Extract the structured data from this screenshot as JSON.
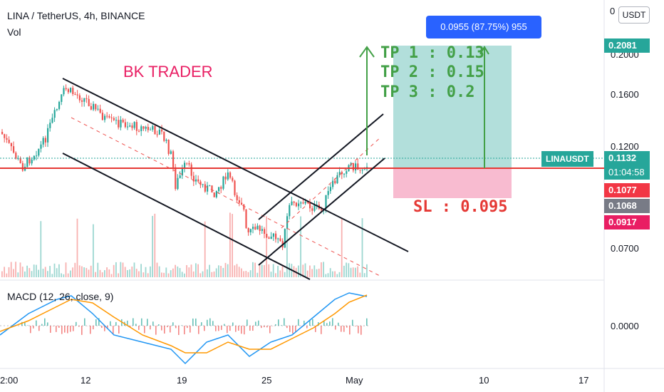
{
  "header": {
    "symbol_line": "LINA / TetherUS, 4h, BINANCE",
    "volume_label": "Vol",
    "macd_label": "MACD (12, 26, close, 9)"
  },
  "currency_button": "USDT",
  "brand_text": "BK TRADER",
  "measure_label": "0.0955 (87.75%) 955",
  "annotations": {
    "tp1": "TP 1 : 0.13",
    "tp2": "TP 2 : 0.15",
    "tp3": "TP 3 : 0.2",
    "sl": "SL : 0.095"
  },
  "price_tags": {
    "target": "0.2081",
    "current": "0.1132",
    "countdown": "01:04:58",
    "symbol": "LINAUSDT",
    "red": "0.1077",
    "grey": "0.1068",
    "stop": "0.0917"
  },
  "colors": {
    "up": "#26a69a",
    "down": "#ef5350",
    "support_line": "#e53935",
    "profit_zone": "#b2dfdb",
    "loss_zone": "#f8bbd0",
    "annotation_green": "#43a047",
    "annotation_red": "#e53935",
    "macd_line": "#2196f3",
    "signal_line": "#ff9800"
  },
  "chart_data": {
    "type": "candlestick",
    "y_axis_ticks": [
      "0.2000",
      "0.1600",
      "0.1200",
      "0.0700"
    ],
    "y_axis_top_tick": "0",
    "macd_axis_tick": "0.0000",
    "x_axis_ticks": [
      "2:00",
      "12",
      "19",
      "25",
      "May",
      "10",
      "17"
    ],
    "ylim": [
      0.055,
      0.25
    ],
    "support_level": 0.1077,
    "entry": 0.1077,
    "target": 0.2081,
    "stop_loss": 0.0917
  }
}
